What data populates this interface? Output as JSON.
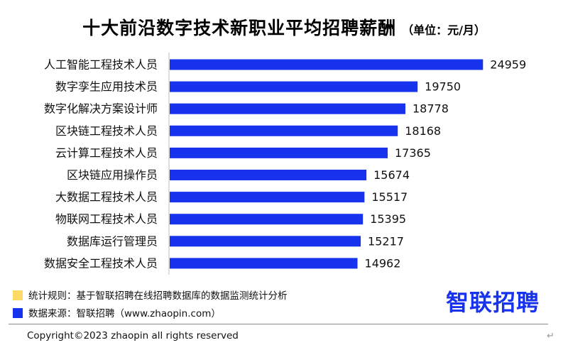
{
  "header": {
    "title": "十大前沿数字技术新职业平均招聘薪酬",
    "unit": "（单位：元/月）"
  },
  "chart_data": {
    "type": "bar",
    "orientation": "horizontal",
    "categories": [
      "人工智能工程技术人员",
      "数字孪生应用技术员",
      "数字化解决方案设计师",
      "区块链工程技术人员",
      "云计算工程技术人员",
      "区块链应用操作员",
      "大数据工程技术人员",
      "物联网工程技术人员",
      "数据库运行管理员",
      "数据安全工程技术人员"
    ],
    "values": [
      24959,
      19750,
      18778,
      18168,
      17365,
      15674,
      15517,
      15395,
      15217,
      14962
    ],
    "xlim": [
      0,
      28000
    ],
    "bar_color": "#1833EE",
    "grid": false,
    "data_labels": true
  },
  "legend": [
    {
      "text": "统计规则：基于智联招聘在线招聘数据库的数据监测统计分析",
      "color": "#FFD966"
    },
    {
      "text": "数据来源：智联招聘（www.zhaopin.com）",
      "color": "#1833EE"
    }
  ],
  "logo": {
    "text": "智联招聘",
    "color": "#1833EE"
  },
  "footer": {
    "copyright": "Copyright©2023 zhaopin all rights reserved"
  },
  "colors": {
    "axis": "#BFBFBF",
    "divider": "#8C8C8C"
  }
}
